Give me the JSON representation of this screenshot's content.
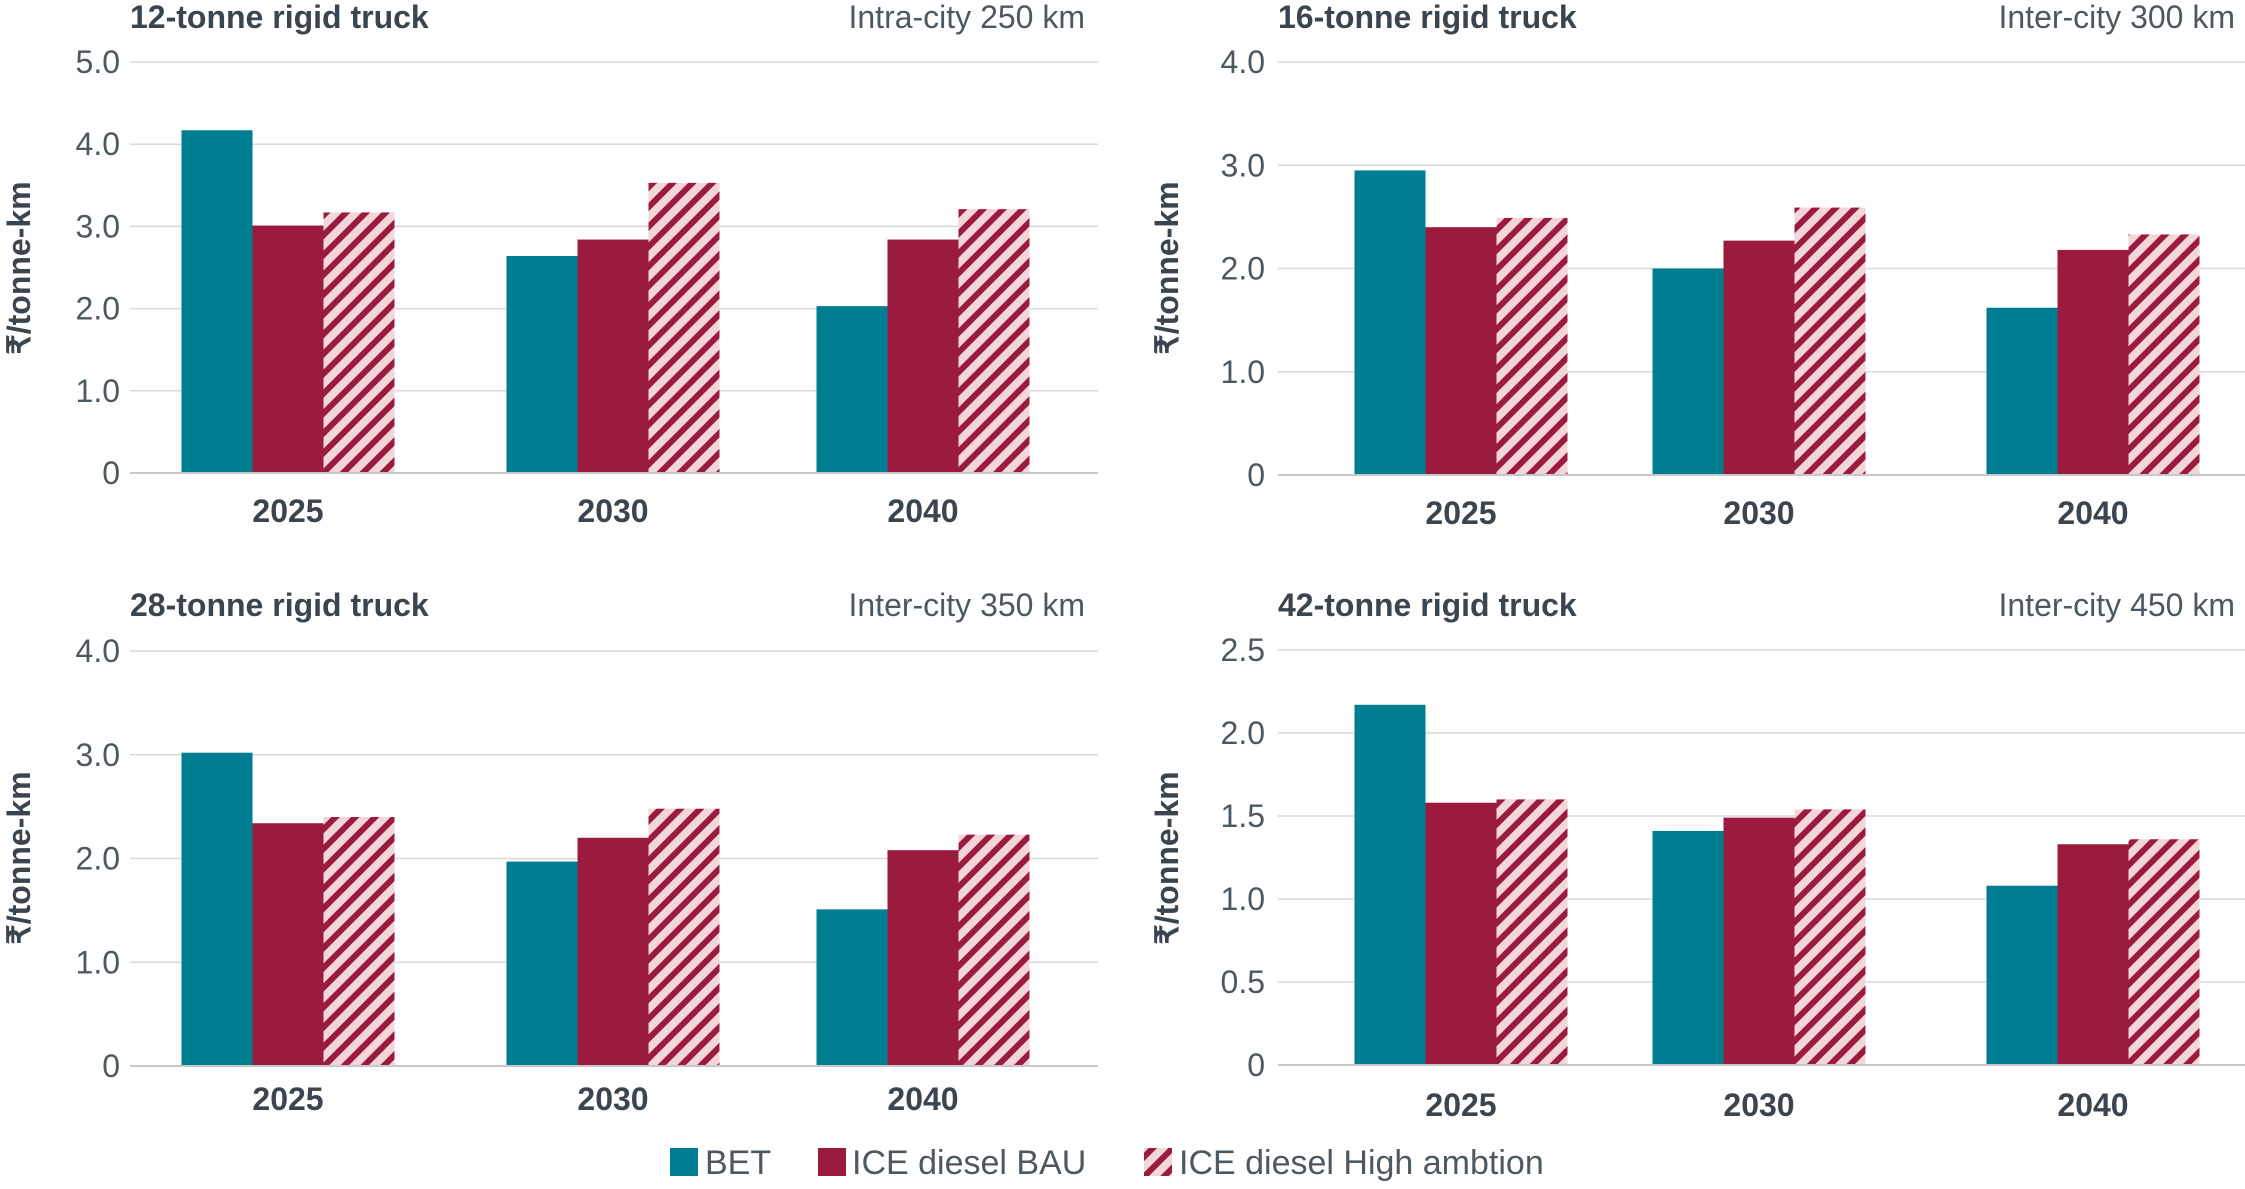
{
  "chart_data": [
    {
      "type": "bar",
      "title": "12-tonne rigid truck",
      "subtitle": "Intra-city 250 km",
      "ylabel": "₹/tonne-km",
      "ylim": [
        0,
        5
      ],
      "yticks": [
        "0",
        "1.0",
        "2.0",
        "3.0",
        "4.0",
        "5.0"
      ],
      "categories": [
        "2025",
        "2030",
        "2040"
      ],
      "series": [
        {
          "name": "BET",
          "values": [
            4.17,
            2.64,
            2.03
          ]
        },
        {
          "name": "ICE diesel BAU",
          "values": [
            3.01,
            2.84,
            2.84
          ]
        },
        {
          "name": "ICE diesel High ambtion",
          "values": [
            3.17,
            3.53,
            3.21
          ]
        }
      ]
    },
    {
      "type": "bar",
      "title": "16-tonne rigid truck",
      "subtitle": "Inter-city 300 km",
      "ylabel": "₹/tonne-km",
      "ylim": [
        0,
        4
      ],
      "yticks": [
        "0",
        "1.0",
        "2.0",
        "3.0",
        "4.0"
      ],
      "categories": [
        "2025",
        "2030",
        "2040"
      ],
      "series": [
        {
          "name": "BET",
          "values": [
            2.95,
            2.0,
            1.62
          ]
        },
        {
          "name": "ICE diesel BAU",
          "values": [
            2.4,
            2.27,
            2.18
          ]
        },
        {
          "name": "ICE diesel High ambtion",
          "values": [
            2.49,
            2.59,
            2.33
          ]
        }
      ]
    },
    {
      "type": "bar",
      "title": "28-tonne rigid truck",
      "subtitle": "Inter-city 350 km",
      "ylabel": "₹/tonne-km",
      "ylim": [
        0,
        4
      ],
      "yticks": [
        "0",
        "1.0",
        "2.0",
        "3.0",
        "4.0"
      ],
      "categories": [
        "2025",
        "2030",
        "2040"
      ],
      "series": [
        {
          "name": "BET",
          "values": [
            3.02,
            1.97,
            1.51
          ]
        },
        {
          "name": "ICE diesel BAU",
          "values": [
            2.34,
            2.2,
            2.08
          ]
        },
        {
          "name": "ICE diesel High ambtion",
          "values": [
            2.4,
            2.48,
            2.23
          ]
        }
      ]
    },
    {
      "type": "bar",
      "title": "42-tonne rigid truck",
      "subtitle": "Inter-city 450 km",
      "ylabel": "₹/tonne-km",
      "ylim": [
        0,
        2.5
      ],
      "yticks": [
        "0",
        "0.5",
        "1.0",
        "1.5",
        "2.0",
        "2.5"
      ],
      "categories": [
        "2025",
        "2030",
        "2040"
      ],
      "series": [
        {
          "name": "BET",
          "values": [
            2.17,
            1.41,
            1.08
          ]
        },
        {
          "name": "ICE diesel BAU",
          "values": [
            1.58,
            1.49,
            1.33
          ]
        },
        {
          "name": "ICE diesel High ambtion",
          "values": [
            1.6,
            1.54,
            1.36
          ]
        }
      ]
    }
  ],
  "legend": {
    "position": "bottom-center",
    "items": [
      {
        "label": "BET",
        "color": "#007e91",
        "pattern": "solid"
      },
      {
        "label": "ICE diesel BAU",
        "color": "#9b1b3f",
        "pattern": "solid"
      },
      {
        "label": "ICE diesel High ambtion",
        "color": "#9b1b3f",
        "pattern": "hatched"
      }
    ]
  },
  "colors": {
    "bet": "#007e91",
    "bau": "#9b1b3f",
    "hatch_bg": "#f2d6da"
  }
}
